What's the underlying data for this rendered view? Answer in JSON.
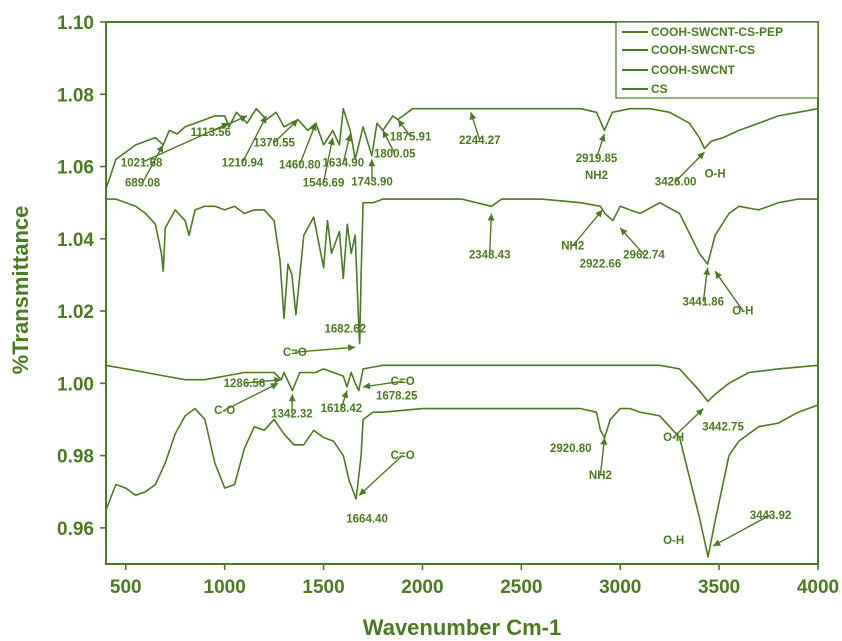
{
  "theme": {
    "ink": "#4c7a23",
    "background": "#ffffff"
  },
  "chart_data": {
    "type": "line",
    "xlabel": "Wavenumber Cm-1",
    "ylabel": "%Transmittance",
    "xlim": [
      400,
      4000
    ],
    "ylim": [
      0.95,
      1.1
    ],
    "xticks": [
      500,
      1000,
      1500,
      2000,
      2500,
      3000,
      3500,
      4000
    ],
    "xtick_labels": [
      "500",
      "1000",
      "1500",
      "2000",
      "2500",
      "3000",
      "3500",
      "4000"
    ],
    "yticks": [
      0.96,
      0.98,
      1.0,
      1.02,
      1.04,
      1.06,
      1.08,
      1.1
    ],
    "ytick_labels": [
      "0.96",
      "0.98",
      "1.00",
      "1.02",
      "1.04",
      "1.06",
      "1.08",
      "1.10"
    ],
    "grid": false,
    "legend_position": "top-right",
    "series": [
      {
        "name": "COOH-SWCNT-CS-PEP",
        "x": [
          400,
          420,
          450,
          500,
          550,
          600,
          650,
          689,
          720,
          760,
          800,
          850,
          900,
          950,
          1000,
          1021.68,
          1060,
          1113.56,
          1160,
          1210.94,
          1260,
          1300,
          1370.55,
          1420,
          1460.8,
          1500,
          1546.69,
          1580,
          1600,
          1634.9,
          1660,
          1700,
          1743.9,
          1770,
          1800.05,
          1850,
          1875.91,
          1950,
          2050,
          2244.27,
          2400,
          2600,
          2800,
          2880,
          2919.85,
          2960,
          3050,
          3150,
          3250,
          3350,
          3400,
          3426,
          3460,
          3520,
          3600,
          3700,
          3800,
          3900,
          4000
        ],
        "y": [
          1.054,
          1.057,
          1.062,
          1.064,
          1.066,
          1.067,
          1.068,
          1.066,
          1.07,
          1.069,
          1.071,
          1.072,
          1.073,
          1.074,
          1.074,
          1.071,
          1.075,
          1.072,
          1.076,
          1.073,
          1.075,
          1.071,
          1.073,
          1.07,
          1.072,
          1.066,
          1.07,
          1.066,
          1.076,
          1.07,
          1.062,
          1.071,
          1.063,
          1.072,
          1.07,
          1.074,
          1.073,
          1.076,
          1.076,
          1.076,
          1.076,
          1.076,
          1.076,
          1.075,
          1.07,
          1.075,
          1.076,
          1.076,
          1.075,
          1.072,
          1.068,
          1.065,
          1.067,
          1.068,
          1.07,
          1.072,
          1.074,
          1.075,
          1.076
        ]
      },
      {
        "name": "COOH-SWCNT-CS",
        "x": [
          400,
          450,
          500,
          550,
          600,
          650,
          680,
          689,
          700,
          750,
          800,
          820,
          850,
          900,
          950,
          1000,
          1050,
          1100,
          1150,
          1200,
          1250,
          1280,
          1300,
          1320,
          1340,
          1360,
          1400,
          1450,
          1500,
          1520,
          1540,
          1580,
          1600,
          1620,
          1640,
          1660,
          1680,
          1682.62,
          1690,
          1700,
          1750,
          1800,
          1900,
          2000,
          2200,
          2348.43,
          2400,
          2600,
          2800,
          2900,
          2922.66,
          2962.74,
          3000,
          3100,
          3200,
          3300,
          3400,
          3441.86,
          3480,
          3550,
          3600,
          3700,
          3800,
          3900,
          4000
        ],
        "y": [
          1.051,
          1.051,
          1.05,
          1.049,
          1.047,
          1.044,
          1.036,
          1.031,
          1.043,
          1.048,
          1.045,
          1.041,
          1.048,
          1.049,
          1.049,
          1.048,
          1.049,
          1.047,
          1.048,
          1.048,
          1.045,
          1.034,
          1.018,
          1.033,
          1.03,
          1.019,
          1.041,
          1.046,
          1.032,
          1.045,
          1.036,
          1.042,
          1.029,
          1.044,
          1.036,
          1.041,
          1.013,
          1.011,
          1.03,
          1.05,
          1.05,
          1.051,
          1.051,
          1.051,
          1.051,
          1.049,
          1.051,
          1.051,
          1.05,
          1.049,
          1.047,
          1.045,
          1.049,
          1.047,
          1.05,
          1.047,
          1.036,
          1.033,
          1.041,
          1.047,
          1.049,
          1.048,
          1.05,
          1.051,
          1.051
        ]
      },
      {
        "name": "COOH-SWCNT",
        "x": [
          400,
          500,
          600,
          700,
          800,
          900,
          1000,
          1100,
          1200,
          1250,
          1286.56,
          1300,
          1342.32,
          1380,
          1420,
          1460,
          1500,
          1550,
          1600,
          1618.42,
          1640,
          1660,
          1678.25,
          1700,
          1800,
          2000,
          2200,
          2400,
          2600,
          2800,
          3000,
          3200,
          3300,
          3400,
          3442.75,
          3480,
          3550,
          3650,
          3800,
          4000
        ],
        "y": [
          1.005,
          1.004,
          1.003,
          1.002,
          1.001,
          1.001,
          1.002,
          1.003,
          1.003,
          1.003,
          1.001,
          1.003,
          0.998,
          1.003,
          1.003,
          1.003,
          1.004,
          1.003,
          1.002,
          0.999,
          1.003,
          1.0,
          0.998,
          1.004,
          1.005,
          1.005,
          1.005,
          1.005,
          1.005,
          1.005,
          1.005,
          1.005,
          1.004,
          0.998,
          0.995,
          0.997,
          1.0,
          1.003,
          1.004,
          1.005
        ]
      },
      {
        "name": "CS",
        "x": [
          400,
          450,
          500,
          550,
          600,
          650,
          700,
          750,
          800,
          850,
          900,
          950,
          1000,
          1050,
          1100,
          1150,
          1200,
          1250,
          1300,
          1350,
          1400,
          1450,
          1500,
          1550,
          1600,
          1630,
          1664.4,
          1690,
          1700,
          1750,
          1800,
          2000,
          2200,
          2400,
          2600,
          2800,
          2880,
          2900,
          2920.8,
          2950,
          3000,
          3050,
          3100,
          3200,
          3300,
          3400,
          3443.92,
          3480,
          3550,
          3600,
          3700,
          3800,
          3900,
          4000
        ],
        "y": [
          0.965,
          0.972,
          0.971,
          0.969,
          0.97,
          0.972,
          0.978,
          0.986,
          0.991,
          0.993,
          0.99,
          0.978,
          0.971,
          0.972,
          0.982,
          0.988,
          0.987,
          0.99,
          0.986,
          0.983,
          0.983,
          0.987,
          0.985,
          0.984,
          0.98,
          0.973,
          0.968,
          0.98,
          0.99,
          0.992,
          0.992,
          0.993,
          0.993,
          0.993,
          0.993,
          0.993,
          0.992,
          0.987,
          0.985,
          0.99,
          0.993,
          0.993,
          0.992,
          0.991,
          0.985,
          0.963,
          0.952,
          0.962,
          0.98,
          0.984,
          0.988,
          0.989,
          0.992,
          0.994
        ]
      }
    ],
    "annotations": [
      {
        "text": "689.08",
        "x": 585,
        "y": 1.0545,
        "ax": 689,
        "ay": 1.066
      },
      {
        "text": "1021.68",
        "x": 580,
        "y": 1.06,
        "ax": 1021.68,
        "ay": 1.072
      },
      {
        "text": "1113.56",
        "x": 930,
        "y": 1.0685,
        "ax": 1113.56,
        "ay": 1.074
      },
      {
        "text": "1210.94",
        "x": 1090,
        "y": 1.06,
        "ax": 1210.94,
        "ay": 1.074
      },
      {
        "text": "1370.55",
        "x": 1250,
        "y": 1.0655,
        "ax": 1370.55,
        "ay": 1.073
      },
      {
        "text": "1460.80",
        "x": 1380,
        "y": 1.0595,
        "ax": 1460.8,
        "ay": 1.072
      },
      {
        "text": "1546.69",
        "x": 1500,
        "y": 1.0545,
        "ax": 1546.69,
        "ay": 1.068
      },
      {
        "text": "1634.90",
        "x": 1600,
        "y": 1.06,
        "ax": 1634.9,
        "ay": 1.069
      },
      {
        "text": "1743.90",
        "x": 1745,
        "y": 1.0548,
        "ax": 1743.9,
        "ay": 1.062
      },
      {
        "text": "1800.05",
        "x": 1860,
        "y": 1.0625,
        "ax": 1800.05,
        "ay": 1.07
      },
      {
        "text": "1875.91",
        "x": 1940,
        "y": 1.0672,
        "ax": 1875.91,
        "ay": 1.073
      },
      {
        "text": "2244.27",
        "x": 2290,
        "y": 1.0662,
        "ax": 2244.27,
        "ay": 1.075
      },
      {
        "text": "2919.85",
        "x": 2880,
        "y": 1.0612,
        "ax": 2919.85,
        "ay": 1.069
      },
      {
        "text": "NH2",
        "x": 2880,
        "y": 1.0565,
        "ax": null,
        "ay": null
      },
      {
        "text": "3426.00",
        "x": 3280,
        "y": 1.0548,
        "ax": 3426,
        "ay": 1.064
      },
      {
        "text": "O-H",
        "x": 3480,
        "y": 1.057,
        "ax": null,
        "ay": null
      },
      {
        "text": "2348.43",
        "x": 2340,
        "y": 1.0345,
        "ax": 2348.43,
        "ay": 1.047
      },
      {
        "text": "NH2",
        "x": 2760,
        "y": 1.037,
        "ax": 2910,
        "ay": 1.048
      },
      {
        "text": "2922.66",
        "x": 2900,
        "y": 1.032,
        "ax": null,
        "ay": null
      },
      {
        "text": "2962.74",
        "x": 3120,
        "y": 1.0345,
        "ax": 3000,
        "ay": 1.043
      },
      {
        "text": "3441.86",
        "x": 3420,
        "y": 1.0215,
        "ax": 3441.86,
        "ay": 1.032
      },
      {
        "text": "O-H",
        "x": 3620,
        "y": 1.019,
        "ax": 3480,
        "ay": 1.031
      },
      {
        "text": "1682.62",
        "x": 1610,
        "y": 1.014,
        "ax": null,
        "ay": null
      },
      {
        "text": "C=O",
        "x": 1355,
        "y": 1.0075,
        "ax": 1660,
        "ay": 1.01
      },
      {
        "text": "1286.56",
        "x": 1100,
        "y": 0.999,
        "ax": 1286.56,
        "ay": 1.001
      },
      {
        "text": "C-O",
        "x": 1000,
        "y": 0.9915,
        "ax": 1270,
        "ay": 1.0
      },
      {
        "text": "1342.32",
        "x": 1340,
        "y": 0.9905,
        "ax": 1342.32,
        "ay": 0.997
      },
      {
        "text": "1618.42",
        "x": 1590,
        "y": 0.992,
        "ax": 1618.42,
        "ay": 0.998
      },
      {
        "text": "C=O",
        "x": 1900,
        "y": 0.9995,
        "ax": 1700,
        "ay": 0.999
      },
      {
        "text": "1678.25",
        "x": 1870,
        "y": 0.9955,
        "ax": null,
        "ay": null
      },
      {
        "text": "O-H",
        "x": 3270,
        "y": 0.984,
        "ax": 3420,
        "ay": 0.993
      },
      {
        "text": "3442.75",
        "x": 3520,
        "y": 0.987,
        "ax": null,
        "ay": null
      },
      {
        "text": "2920.80",
        "x": 2750,
        "y": 0.981,
        "ax": null,
        "ay": null
      },
      {
        "text": "NH2",
        "x": 2900,
        "y": 0.9735,
        "ax": 2920.8,
        "ay": 0.985
      },
      {
        "text": "C=O",
        "x": 1900,
        "y": 0.979,
        "ax": 1680,
        "ay": 0.969
      },
      {
        "text": "1664.40",
        "x": 1720,
        "y": 0.9615,
        "ax": null,
        "ay": null
      },
      {
        "text": "3443.92",
        "x": 3760,
        "y": 0.9625,
        "ax": 3470,
        "ay": 0.955
      },
      {
        "text": "O-H",
        "x": 3270,
        "y": 0.9555,
        "ax": null,
        "ay": null
      }
    ]
  }
}
